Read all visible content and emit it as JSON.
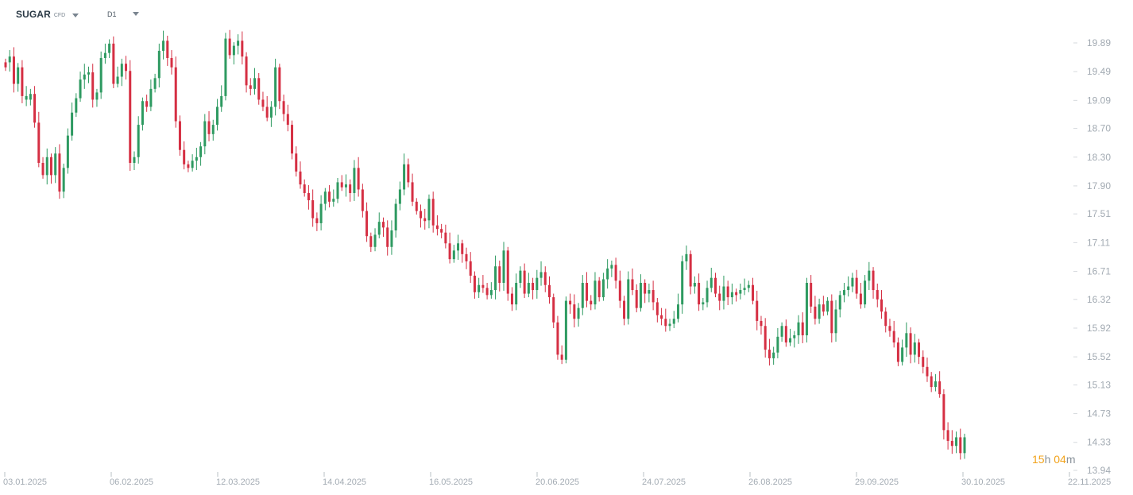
{
  "header": {
    "symbol": "SUGAR",
    "symbol_type": "CFD",
    "timeframe": "D1"
  },
  "countdown": {
    "hours": "15",
    "hours_unit": "h",
    "minutes": "04",
    "minutes_unit": "m"
  },
  "colors": {
    "up": "#2e9a61",
    "down": "#d52f43",
    "axis_text": "#a3abb3",
    "countdown": "#f2a31b"
  },
  "chart_data": {
    "type": "candlestick",
    "title": "",
    "xlabel": "",
    "ylabel": "",
    "ylim": [
      13.94,
      20.1
    ],
    "y_ticks": [
      "19.89",
      "19.49",
      "19.09",
      "18.70",
      "18.30",
      "17.90",
      "17.51",
      "17.11",
      "16.71",
      "16.32",
      "15.92",
      "15.52",
      "15.13",
      "14.73",
      "14.33",
      "13.94"
    ],
    "x_ticks": [
      "03.01.2025",
      "06.02.2025",
      "12.03.2025",
      "14.04.2025",
      "16.05.2025",
      "20.06.2025",
      "24.07.2025",
      "26.08.2025",
      "29.09.2025",
      "30.10.2025",
      "22.11.2025"
    ],
    "grid": false,
    "series": [
      {
        "close": 19.62,
        "dir": "down"
      },
      {
        "close": 19.7,
        "dir": "up"
      },
      {
        "close": 19.32,
        "dir": "down"
      },
      {
        "close": 19.55,
        "dir": "up"
      },
      {
        "close": 19.15,
        "dir": "down"
      },
      {
        "close": 19.1,
        "dir": "up"
      },
      {
        "close": 19.18,
        "dir": "up"
      },
      {
        "close": 18.78,
        "dir": "down"
      },
      {
        "close": 18.22,
        "dir": "down"
      },
      {
        "close": 18.05,
        "dir": "down"
      },
      {
        "close": 18.3,
        "dir": "up"
      },
      {
        "close": 18.05,
        "dir": "down"
      },
      {
        "close": 18.35,
        "dir": "up"
      },
      {
        "close": 17.82,
        "dir": "down"
      },
      {
        "close": 18.15,
        "dir": "up"
      },
      {
        "close": 18.6,
        "dir": "up"
      },
      {
        "close": 18.92,
        "dir": "up"
      },
      {
        "close": 19.12,
        "dir": "up"
      },
      {
        "close": 19.38,
        "dir": "up"
      },
      {
        "close": 19.45,
        "dir": "up"
      },
      {
        "close": 19.48,
        "dir": "up"
      },
      {
        "close": 19.1,
        "dir": "down"
      },
      {
        "close": 19.2,
        "dir": "up"
      },
      {
        "close": 19.68,
        "dir": "up"
      },
      {
        "close": 19.75,
        "dir": "up"
      },
      {
        "close": 19.88,
        "dir": "up"
      },
      {
        "close": 19.32,
        "dir": "down"
      },
      {
        "close": 19.42,
        "dir": "up"
      },
      {
        "close": 19.6,
        "dir": "up"
      },
      {
        "close": 19.5,
        "dir": "down"
      },
      {
        "close": 18.22,
        "dir": "down"
      },
      {
        "close": 18.3,
        "dir": "up"
      },
      {
        "close": 18.75,
        "dir": "up"
      },
      {
        "close": 19.08,
        "dir": "up"
      },
      {
        "close": 19.0,
        "dir": "down"
      },
      {
        "close": 19.25,
        "dir": "up"
      },
      {
        "close": 19.4,
        "dir": "up"
      },
      {
        "close": 19.78,
        "dir": "up"
      },
      {
        "close": 19.92,
        "dir": "up"
      },
      {
        "close": 19.68,
        "dir": "down"
      },
      {
        "close": 19.55,
        "dir": "down"
      },
      {
        "close": 18.8,
        "dir": "down"
      },
      {
        "close": 18.4,
        "dir": "down"
      },
      {
        "close": 18.2,
        "dir": "down"
      },
      {
        "close": 18.15,
        "dir": "down"
      },
      {
        "close": 18.25,
        "dir": "up"
      },
      {
        "close": 18.3,
        "dir": "up"
      },
      {
        "close": 18.45,
        "dir": "up"
      },
      {
        "close": 18.8,
        "dir": "up"
      },
      {
        "close": 18.62,
        "dir": "down"
      },
      {
        "close": 18.75,
        "dir": "up"
      },
      {
        "close": 19.0,
        "dir": "up"
      },
      {
        "close": 19.15,
        "dir": "up"
      },
      {
        "close": 19.95,
        "dir": "up"
      },
      {
        "close": 19.72,
        "dir": "down"
      },
      {
        "close": 19.85,
        "dir": "up"
      },
      {
        "close": 19.92,
        "dir": "up"
      },
      {
        "close": 19.7,
        "dir": "down"
      },
      {
        "close": 19.3,
        "dir": "down"
      },
      {
        "close": 19.25,
        "dir": "down"
      },
      {
        "close": 19.4,
        "dir": "up"
      },
      {
        "close": 19.1,
        "dir": "down"
      },
      {
        "close": 19.0,
        "dir": "down"
      },
      {
        "close": 18.85,
        "dir": "down"
      },
      {
        "close": 19.0,
        "dir": "up"
      },
      {
        "close": 19.55,
        "dir": "up"
      },
      {
        "close": 19.08,
        "dir": "down"
      },
      {
        "close": 18.9,
        "dir": "down"
      },
      {
        "close": 18.75,
        "dir": "down"
      },
      {
        "close": 18.35,
        "dir": "down"
      },
      {
        "close": 18.1,
        "dir": "down"
      },
      {
        "close": 17.92,
        "dir": "down"
      },
      {
        "close": 17.8,
        "dir": "down"
      },
      {
        "close": 17.7,
        "dir": "down"
      },
      {
        "close": 17.45,
        "dir": "down"
      },
      {
        "close": 17.38,
        "dir": "down"
      },
      {
        "close": 17.65,
        "dir": "up"
      },
      {
        "close": 17.82,
        "dir": "up"
      },
      {
        "close": 17.68,
        "dir": "down"
      },
      {
        "close": 17.72,
        "dir": "up"
      },
      {
        "close": 17.95,
        "dir": "up"
      },
      {
        "close": 17.88,
        "dir": "down"
      },
      {
        "close": 17.92,
        "dir": "up"
      },
      {
        "close": 17.8,
        "dir": "down"
      },
      {
        "close": 18.15,
        "dir": "up"
      },
      {
        "close": 17.85,
        "dir": "down"
      },
      {
        "close": 17.55,
        "dir": "down"
      },
      {
        "close": 17.2,
        "dir": "down"
      },
      {
        "close": 17.05,
        "dir": "down"
      },
      {
        "close": 17.22,
        "dir": "up"
      },
      {
        "close": 17.4,
        "dir": "up"
      },
      {
        "close": 17.32,
        "dir": "down"
      },
      {
        "close": 17.05,
        "dir": "down"
      },
      {
        "close": 17.28,
        "dir": "up"
      },
      {
        "close": 17.65,
        "dir": "up"
      },
      {
        "close": 17.85,
        "dir": "up"
      },
      {
        "close": 18.2,
        "dir": "up"
      },
      {
        "close": 17.95,
        "dir": "down"
      },
      {
        "close": 17.68,
        "dir": "down"
      },
      {
        "close": 17.55,
        "dir": "down"
      },
      {
        "close": 17.45,
        "dir": "down"
      },
      {
        "close": 17.42,
        "dir": "down"
      },
      {
        "close": 17.72,
        "dir": "up"
      },
      {
        "close": 17.35,
        "dir": "down"
      },
      {
        "close": 17.3,
        "dir": "down"
      },
      {
        "close": 17.25,
        "dir": "down"
      },
      {
        "close": 17.1,
        "dir": "down"
      },
      {
        "close": 16.88,
        "dir": "down"
      },
      {
        "close": 17.0,
        "dir": "up"
      },
      {
        "close": 17.1,
        "dir": "up"
      },
      {
        "close": 16.95,
        "dir": "down"
      },
      {
        "close": 16.85,
        "dir": "down"
      },
      {
        "close": 16.65,
        "dir": "down"
      },
      {
        "close": 16.42,
        "dir": "down"
      },
      {
        "close": 16.52,
        "dir": "up"
      },
      {
        "close": 16.48,
        "dir": "down"
      },
      {
        "close": 16.38,
        "dir": "down"
      },
      {
        "close": 16.45,
        "dir": "up"
      },
      {
        "close": 16.78,
        "dir": "up"
      },
      {
        "close": 16.55,
        "dir": "down"
      },
      {
        "close": 17.0,
        "dir": "up"
      },
      {
        "close": 16.4,
        "dir": "down"
      },
      {
        "close": 16.25,
        "dir": "down"
      },
      {
        "close": 16.55,
        "dir": "up"
      },
      {
        "close": 16.72,
        "dir": "up"
      },
      {
        "close": 16.4,
        "dir": "down"
      },
      {
        "close": 16.55,
        "dir": "up"
      },
      {
        "close": 16.45,
        "dir": "down"
      },
      {
        "close": 16.62,
        "dir": "up"
      },
      {
        "close": 16.7,
        "dir": "up"
      },
      {
        "close": 16.52,
        "dir": "down"
      },
      {
        "close": 16.35,
        "dir": "down"
      },
      {
        "close": 16.0,
        "dir": "down"
      },
      {
        "close": 15.55,
        "dir": "down"
      },
      {
        "close": 15.48,
        "dir": "down"
      },
      {
        "close": 16.3,
        "dir": "up"
      },
      {
        "close": 16.25,
        "dir": "down"
      },
      {
        "close": 16.05,
        "dir": "down"
      },
      {
        "close": 16.2,
        "dir": "up"
      },
      {
        "close": 16.55,
        "dir": "up"
      },
      {
        "close": 16.3,
        "dir": "down"
      },
      {
        "close": 16.25,
        "dir": "down"
      },
      {
        "close": 16.58,
        "dir": "up"
      },
      {
        "close": 16.35,
        "dir": "down"
      },
      {
        "close": 16.6,
        "dir": "up"
      },
      {
        "close": 16.75,
        "dir": "up"
      },
      {
        "close": 16.8,
        "dir": "up"
      },
      {
        "close": 16.58,
        "dir": "down"
      },
      {
        "close": 16.3,
        "dir": "down"
      },
      {
        "close": 16.05,
        "dir": "down"
      },
      {
        "close": 16.6,
        "dir": "up"
      },
      {
        "close": 16.45,
        "dir": "down"
      },
      {
        "close": 16.2,
        "dir": "down"
      },
      {
        "close": 16.55,
        "dir": "up"
      },
      {
        "close": 16.4,
        "dir": "down"
      },
      {
        "close": 16.45,
        "dir": "up"
      },
      {
        "close": 16.28,
        "dir": "down"
      },
      {
        "close": 16.1,
        "dir": "down"
      },
      {
        "close": 16.05,
        "dir": "down"
      },
      {
        "close": 15.95,
        "dir": "down"
      },
      {
        "close": 15.98,
        "dir": "up"
      },
      {
        "close": 16.05,
        "dir": "up"
      },
      {
        "close": 16.25,
        "dir": "up"
      },
      {
        "close": 16.85,
        "dir": "up"
      },
      {
        "close": 16.95,
        "dir": "up"
      },
      {
        "close": 16.5,
        "dir": "down"
      },
      {
        "close": 16.55,
        "dir": "up"
      },
      {
        "close": 16.25,
        "dir": "down"
      },
      {
        "close": 16.28,
        "dir": "up"
      },
      {
        "close": 16.48,
        "dir": "up"
      },
      {
        "close": 16.62,
        "dir": "up"
      },
      {
        "close": 16.4,
        "dir": "down"
      },
      {
        "close": 16.3,
        "dir": "down"
      },
      {
        "close": 16.5,
        "dir": "up"
      },
      {
        "close": 16.35,
        "dir": "down"
      },
      {
        "close": 16.42,
        "dir": "up"
      },
      {
        "close": 16.4,
        "dir": "down"
      },
      {
        "close": 16.45,
        "dir": "up"
      },
      {
        "close": 16.48,
        "dir": "up"
      },
      {
        "close": 16.52,
        "dir": "up"
      },
      {
        "close": 16.3,
        "dir": "down"
      },
      {
        "close": 16.02,
        "dir": "down"
      },
      {
        "close": 15.95,
        "dir": "down"
      },
      {
        "close": 15.62,
        "dir": "down"
      },
      {
        "close": 15.5,
        "dir": "down"
      },
      {
        "close": 15.58,
        "dir": "up"
      },
      {
        "close": 15.8,
        "dir": "up"
      },
      {
        "close": 15.95,
        "dir": "up"
      },
      {
        "close": 15.72,
        "dir": "down"
      },
      {
        "close": 15.78,
        "dir": "up"
      },
      {
        "close": 15.82,
        "dir": "up"
      },
      {
        "close": 16.0,
        "dir": "up"
      },
      {
        "close": 15.82,
        "dir": "down"
      },
      {
        "close": 16.55,
        "dir": "up"
      },
      {
        "close": 16.22,
        "dir": "down"
      },
      {
        "close": 16.05,
        "dir": "down"
      },
      {
        "close": 16.25,
        "dir": "up"
      },
      {
        "close": 16.15,
        "dir": "down"
      },
      {
        "close": 16.3,
        "dir": "up"
      },
      {
        "close": 15.85,
        "dir": "down"
      },
      {
        "close": 16.18,
        "dir": "up"
      },
      {
        "close": 16.38,
        "dir": "up"
      },
      {
        "close": 16.45,
        "dir": "up"
      },
      {
        "close": 16.5,
        "dir": "up"
      },
      {
        "close": 16.62,
        "dir": "up"
      },
      {
        "close": 16.4,
        "dir": "down"
      },
      {
        "close": 16.25,
        "dir": "down"
      },
      {
        "close": 16.58,
        "dir": "up"
      },
      {
        "close": 16.72,
        "dir": "up"
      },
      {
        "close": 16.45,
        "dir": "down"
      },
      {
        "close": 16.32,
        "dir": "down"
      },
      {
        "close": 16.15,
        "dir": "down"
      },
      {
        "close": 15.95,
        "dir": "down"
      },
      {
        "close": 15.88,
        "dir": "down"
      },
      {
        "close": 15.72,
        "dir": "down"
      },
      {
        "close": 15.45,
        "dir": "down"
      },
      {
        "close": 15.65,
        "dir": "up"
      },
      {
        "close": 15.85,
        "dir": "up"
      },
      {
        "close": 15.55,
        "dir": "down"
      },
      {
        "close": 15.72,
        "dir": "up"
      },
      {
        "close": 15.52,
        "dir": "down"
      },
      {
        "close": 15.38,
        "dir": "down"
      },
      {
        "close": 15.25,
        "dir": "down"
      },
      {
        "close": 15.1,
        "dir": "down"
      },
      {
        "close": 15.18,
        "dir": "up"
      },
      {
        "close": 15.0,
        "dir": "down"
      },
      {
        "close": 14.5,
        "dir": "down"
      },
      {
        "close": 14.35,
        "dir": "down"
      },
      {
        "close": 14.28,
        "dir": "down"
      },
      {
        "close": 14.4,
        "dir": "up"
      },
      {
        "close": 14.18,
        "dir": "down"
      },
      {
        "close": 14.4,
        "dir": "up"
      }
    ]
  }
}
